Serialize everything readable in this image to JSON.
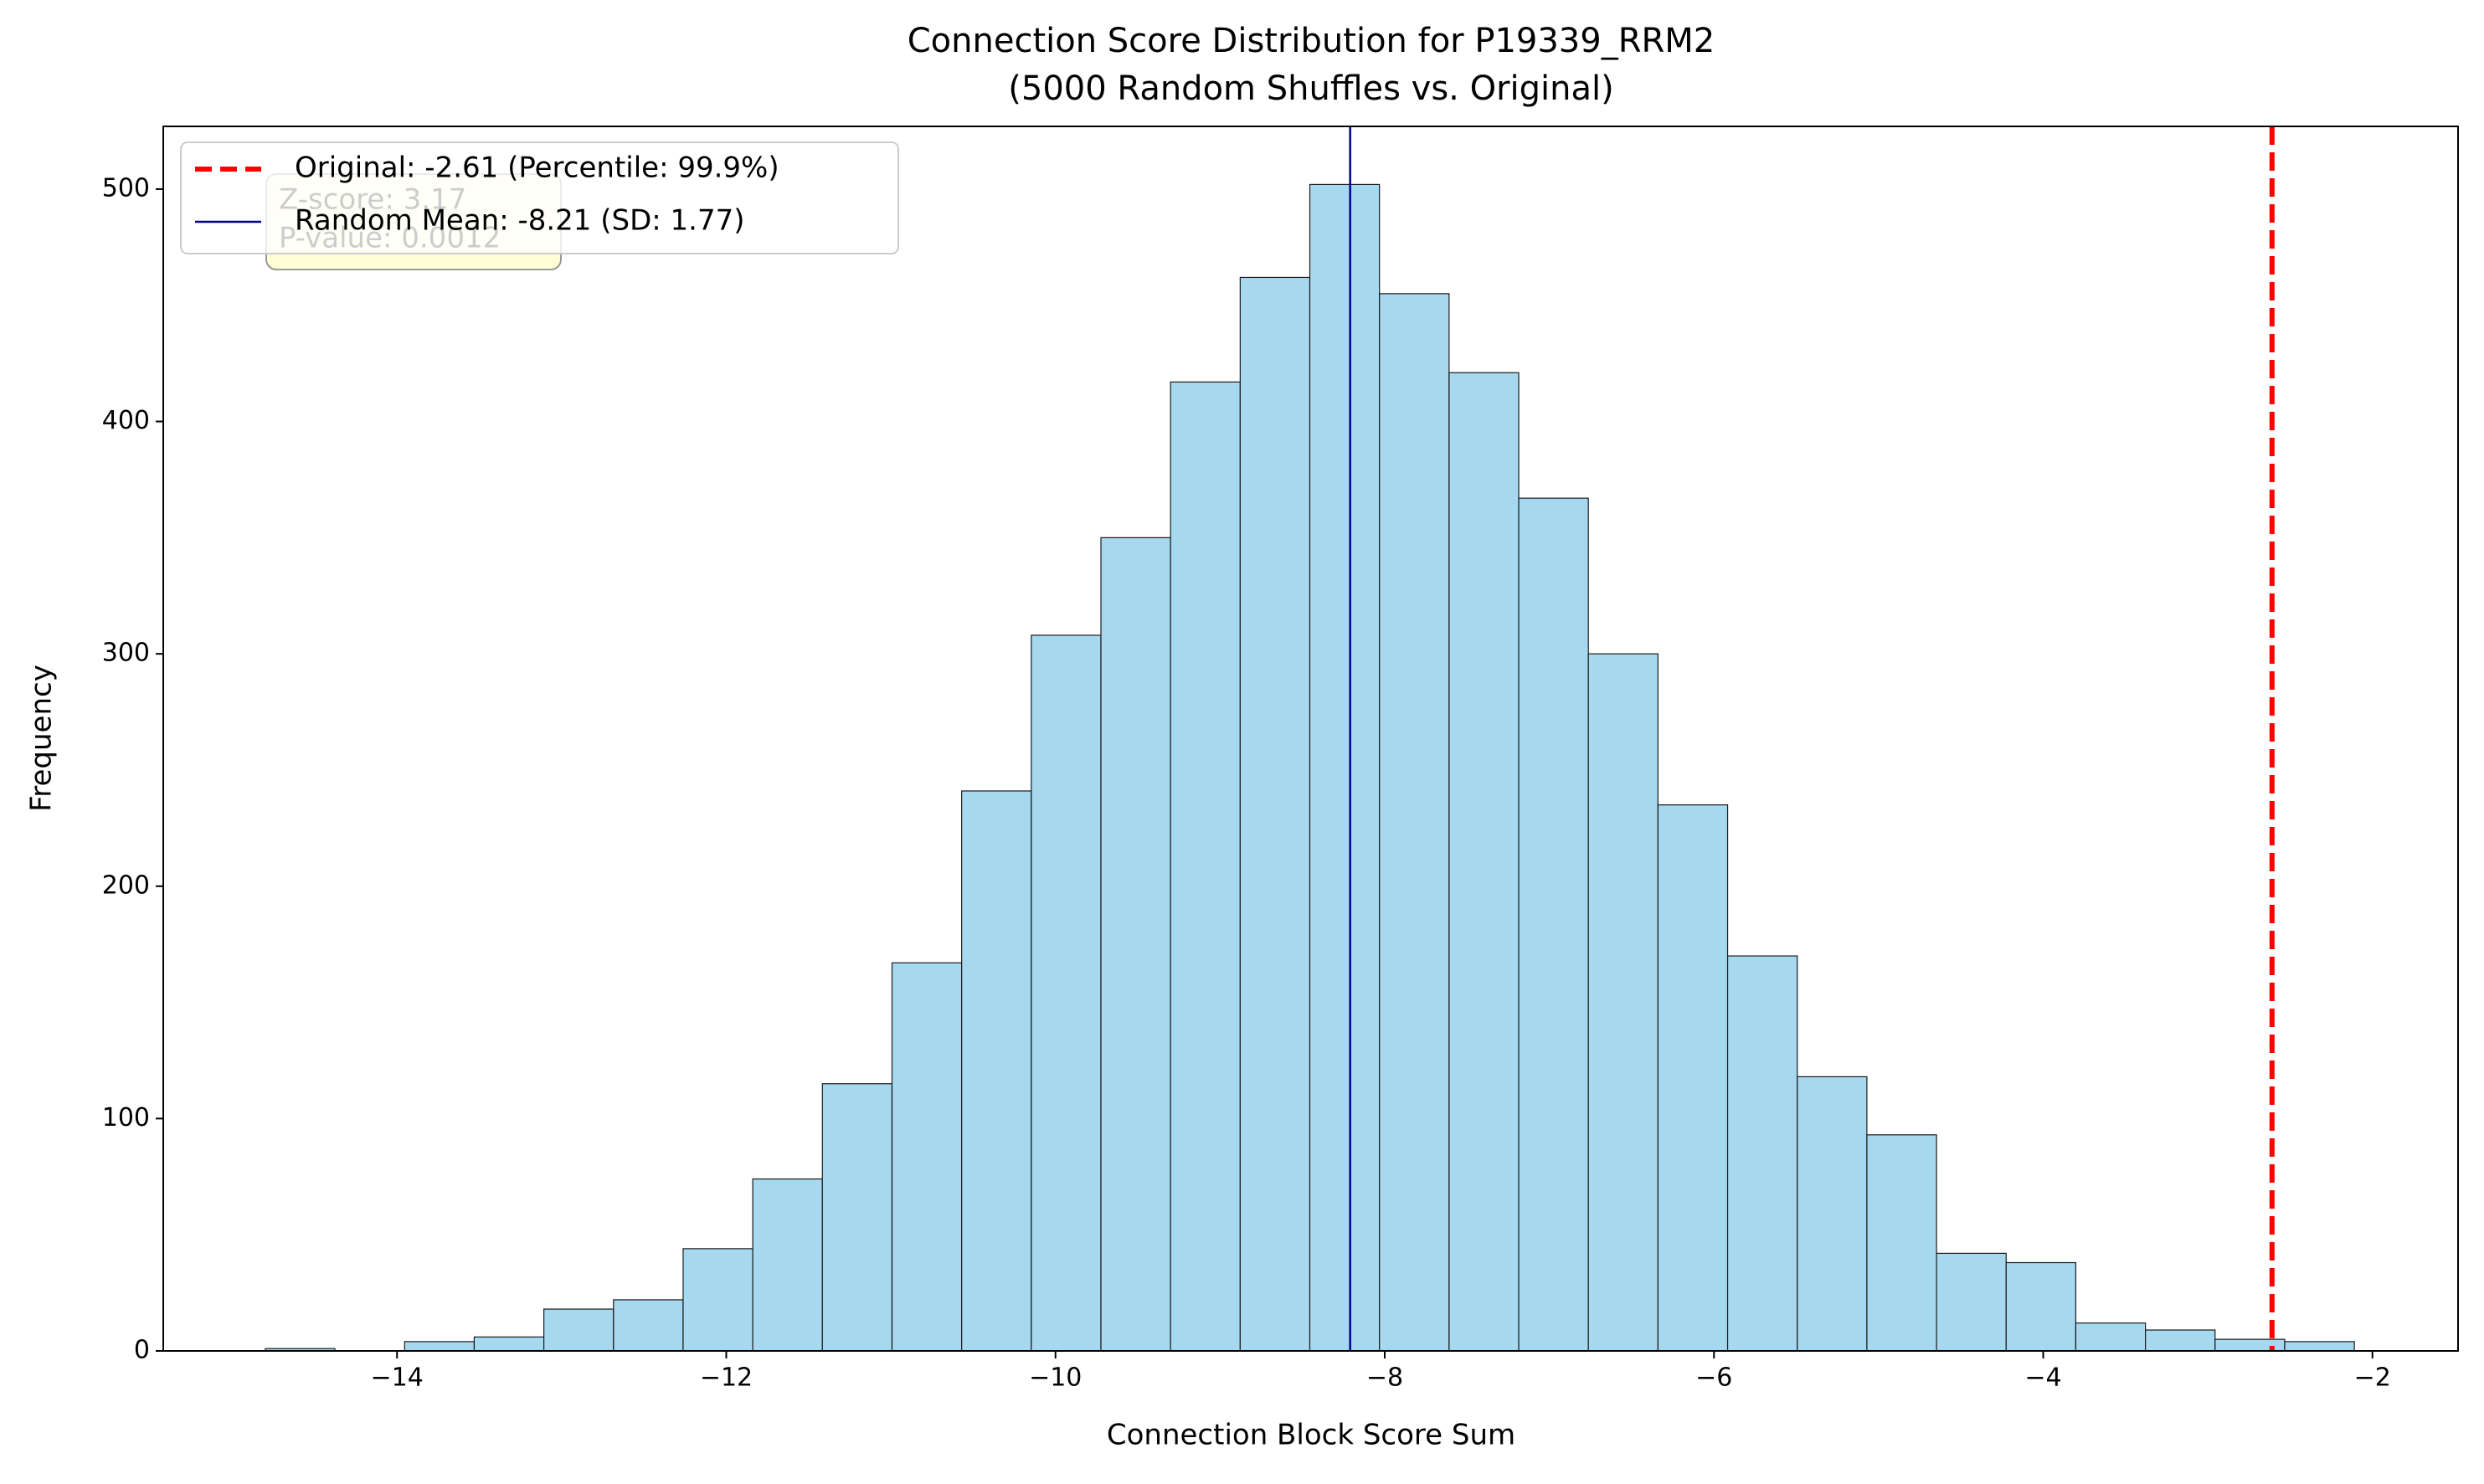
{
  "chart_data": {
    "type": "histogram",
    "title": "Connection Score Distribution for P19339_RRM2",
    "subtitle": "(5000 Random Shuffles vs. Original)",
    "x_label": "Connection Block Score Sum",
    "y_label": "Frequency",
    "bins": [
      -14.8,
      -14.377,
      -13.954,
      -13.531,
      -13.108,
      -12.685,
      -12.262,
      -11.839,
      -11.416,
      -10.993,
      -10.57,
      -10.147,
      -9.724,
      -9.301,
      -8.878,
      -8.455,
      -8.032,
      -7.609,
      -7.186,
      -6.763,
      -6.34,
      -5.917,
      -5.494,
      -5.071,
      -4.648,
      -4.225,
      -3.802,
      -3.379,
      -2.956,
      -2.533,
      -2.11
    ],
    "values": [
      1,
      0,
      4,
      6,
      18,
      22,
      44,
      74,
      115,
      167,
      241,
      308,
      350,
      417,
      462,
      502,
      455,
      421,
      367,
      300,
      235,
      170,
      118,
      93,
      42,
      38,
      12,
      9,
      5,
      4
    ],
    "color": "#a6d8ef",
    "edge_color": "#1a1a1a",
    "xlim": [
      -15.42,
      -1.48
    ],
    "ylim": [
      0,
      527
    ],
    "xticks": [
      {
        "value": -14,
        "label": "−14"
      },
      {
        "value": -12,
        "label": "−12"
      },
      {
        "value": -10,
        "label": "−10"
      },
      {
        "value": -8,
        "label": "−8"
      },
      {
        "value": -6,
        "label": "−6"
      },
      {
        "value": -4,
        "label": "−4"
      },
      {
        "value": -2,
        "label": "−2"
      }
    ],
    "yticks": [
      0,
      100,
      200,
      300,
      400,
      500
    ],
    "reference_lines": [
      {
        "value": -2.61,
        "label": "Original: -2.61 (Percentile: 99.9%)",
        "color": "#ff0000",
        "style": "dashed"
      },
      {
        "value": -8.21,
        "label": "Random Mean: -8.21 (SD: 1.77)",
        "color": "#00008b",
        "style": "solid"
      }
    ],
    "annotation": [
      "Z-score: 3.17",
      "P-value: 0.0012"
    ],
    "legend": "upper left"
  }
}
